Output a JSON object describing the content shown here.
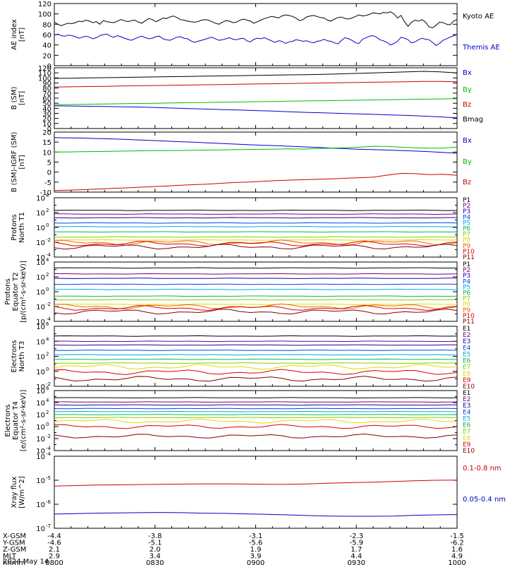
{
  "chart_data": [
    {
      "type": "line",
      "ylabel": "AE index\n[nT]",
      "ylim": [
        0,
        120
      ],
      "yticks": [
        "0",
        "20",
        "40",
        "60",
        "80",
        "100",
        "120"
      ],
      "series": [
        {
          "name": "Kyoto AE",
          "color": "#000000",
          "values": [
            84,
            80,
            77,
            80,
            82,
            81,
            83,
            86,
            85,
            88,
            86,
            83,
            85,
            80,
            87,
            85,
            84,
            83,
            86,
            89,
            87,
            85,
            87,
            88,
            84,
            82,
            87,
            91,
            89,
            85,
            88,
            92,
            91,
            94,
            96,
            93,
            89,
            88,
            86,
            85,
            84,
            85,
            88,
            89,
            88,
            85,
            82,
            80,
            84,
            87,
            86,
            83,
            84,
            88,
            90,
            88,
            86,
            82,
            85,
            88,
            91,
            93,
            95,
            94,
            92,
            96,
            98,
            97,
            95,
            92,
            87,
            89,
            94,
            96,
            97,
            95,
            93,
            92,
            88,
            86,
            90,
            93,
            94,
            91,
            90,
            92,
            95,
            98,
            96,
            97,
            99,
            102,
            101,
            100,
            103,
            102,
            104,
            100,
            92,
            97,
            85,
            76,
            84,
            88,
            86,
            89,
            84,
            75,
            73,
            78,
            84,
            83,
            80,
            79,
            86,
            89
          ]
        },
        {
          "name": "Themis AE",
          "color": "#0000cc",
          "values": [
            59,
            61,
            58,
            57,
            59,
            58,
            56,
            53,
            55,
            57,
            55,
            52,
            54,
            58,
            60,
            61,
            57,
            55,
            58,
            56,
            53,
            51,
            49,
            52,
            55,
            57,
            54,
            52,
            53,
            56,
            57,
            52,
            50,
            49,
            52,
            55,
            56,
            53,
            52,
            48,
            45,
            47,
            49,
            51,
            53,
            55,
            52,
            49,
            50,
            52,
            54,
            51,
            50,
            52,
            53,
            48,
            46,
            51,
            53,
            52,
            54,
            51,
            48,
            45,
            48,
            47,
            43,
            46,
            47,
            50,
            49,
            47,
            48,
            46,
            44,
            47,
            48,
            51,
            48,
            47,
            44,
            42,
            49,
            54,
            52,
            49,
            44,
            43,
            51,
            54,
            57,
            58,
            55,
            50,
            48,
            45,
            40,
            43,
            47,
            55,
            53,
            50,
            44,
            46,
            50,
            53,
            51,
            50,
            45,
            39,
            43,
            49,
            52,
            55,
            58,
            60
          ]
        }
      ]
    },
    {
      "type": "line",
      "ylabel": "B (SM)\n[nT]",
      "ylim": [
        0,
        120
      ],
      "yticks": [
        "0",
        "10",
        "20",
        "30",
        "40",
        "50",
        "60",
        "70",
        "80",
        "90",
        "100",
        "110",
        "120"
      ],
      "series": [
        {
          "name": "Bx",
          "color": "#0000cc",
          "values": [
            45,
            44.5,
            44,
            43.5,
            43,
            42.5,
            41.5,
            40.5,
            39.5,
            38.5,
            37.5,
            36.5,
            35.5,
            34.5,
            33,
            32,
            31,
            30,
            29,
            28,
            27,
            26,
            24.5,
            23,
            21
          ]
        },
        {
          "name": "By",
          "color": "#00bb00",
          "values": [
            47,
            47.5,
            48,
            48.5,
            49,
            49.5,
            50,
            50.5,
            51,
            51.5,
            52,
            52.5,
            53,
            53.5,
            54,
            54.5,
            55,
            55.5,
            56,
            56.5,
            57,
            57.5,
            58,
            58.5,
            59
          ]
        },
        {
          "name": "Bz",
          "color": "#cc0000",
          "values": [
            82,
            82.5,
            83,
            83.5,
            84,
            84.5,
            85,
            85.5,
            86,
            86.5,
            87,
            87.5,
            88,
            88.5,
            89,
            89.5,
            90,
            90.5,
            91,
            91.5,
            92,
            92.5,
            93,
            93,
            92.5
          ]
        },
        {
          "name": "Bmag",
          "color": "#000000",
          "values": [
            99,
            99.5,
            100,
            100.5,
            101,
            101.5,
            102,
            102.5,
            103,
            103.5,
            104,
            104.5,
            105,
            105.5,
            106,
            106.5,
            107,
            108,
            109,
            110,
            111,
            112,
            113,
            112,
            110
          ]
        }
      ]
    },
    {
      "type": "line",
      "ylabel": "B (SM)-IGRF (SM)\n[nT]",
      "ylim": [
        -10,
        20
      ],
      "yticks": [
        "-10",
        "-5",
        "0",
        "5",
        "10",
        "15",
        "20"
      ],
      "series": [
        {
          "name": "Bx",
          "color": "#0000cc",
          "values": [
            17.2,
            17.1,
            17,
            16.8,
            16.6,
            16.4,
            16.1,
            15.8,
            15.5,
            15.2,
            15,
            14.6,
            14.3,
            14,
            13.7,
            13.4,
            13.2,
            12.9,
            12.6,
            12.3,
            12,
            11.7,
            11.4,
            11.2,
            11,
            10.8,
            10.5,
            10.2,
            9.8,
            9.4
          ]
        },
        {
          "name": "By",
          "color": "#00bb00",
          "values": [
            10,
            10.1,
            10.2,
            10.3,
            10.4,
            10.5,
            10.6,
            10.7,
            10.7,
            10.8,
            10.9,
            11,
            11.1,
            11.2,
            11.3,
            11.4,
            11.5,
            11.6,
            11.5,
            11.8,
            12,
            12.2,
            12.5,
            12.9,
            12.8,
            12.4,
            12.1,
            12,
            12,
            12.5
          ]
        },
        {
          "name": "Bz",
          "color": "#cc0000",
          "values": [
            -9.2,
            -9,
            -8.8,
            -8.5,
            -8.2,
            -7.9,
            -7.6,
            -7.3,
            -7,
            -6.6,
            -6.3,
            -6,
            -5.6,
            -5.2,
            -5,
            -4.6,
            -4.3,
            -4,
            -3.8,
            -3.6,
            -3.4,
            -3.1,
            -2.8,
            -2.5,
            -1.5,
            -0.6,
            -0.8,
            -1.3,
            -1.1,
            -1.6
          ]
        }
      ]
    },
    {
      "type": "line",
      "ylabel": "Protons\nNorth T1",
      "yscale": "log",
      "ylim": [
        0.0001,
        10000
      ],
      "ytick_exponents": [
        "-4",
        "-2",
        "0",
        "2",
        "4"
      ],
      "series": [
        {
          "name": "P1",
          "color": "#000000",
          "level": 2.3
        },
        {
          "name": "P2",
          "color": "#770077",
          "level": 1.8
        },
        {
          "name": "P3",
          "color": "#220099",
          "level": 1.3
        },
        {
          "name": "P4",
          "color": "#0044ee",
          "level": 0.6
        },
        {
          "name": "P5",
          "color": "#00aadd",
          "level": 0.1
        },
        {
          "name": "P6",
          "color": "#00bb55",
          "level": -0.6
        },
        {
          "name": "P7",
          "color": "#88cc00",
          "level": -1.3
        },
        {
          "name": "P8",
          "color": "#dddd00",
          "level": -1.7
        },
        {
          "name": "P9",
          "color": "#ee6600",
          "level": -2.05
        },
        {
          "name": "P10",
          "color": "#dd0000",
          "level": -2.2
        },
        {
          "name": "P11",
          "color": "#880000",
          "level": -2.6
        }
      ]
    },
    {
      "type": "line",
      "ylabel": "Protons\nEquator T2\n[p/(cm²-s-sr-keV)]",
      "yscale": "log",
      "ylim": [
        0.0001,
        10000
      ],
      "ytick_exponents": [
        "-4",
        "-2",
        "0",
        "2",
        "4"
      ],
      "series": [
        {
          "name": "P1",
          "color": "#000000",
          "level": 3.2
        },
        {
          "name": "P2",
          "color": "#770077",
          "level": 2.4
        },
        {
          "name": "P3",
          "color": "#220099",
          "level": 1.8
        },
        {
          "name": "P4",
          "color": "#0044ee",
          "level": 1.0
        },
        {
          "name": "P5",
          "color": "#00aadd",
          "level": 0.3
        },
        {
          "name": "P6",
          "color": "#00bb55",
          "level": -0.6
        },
        {
          "name": "P7",
          "color": "#88cc00",
          "level": -1.1
        },
        {
          "name": "P8",
          "color": "#dddd00",
          "level": -1.7
        },
        {
          "name": "P9",
          "color": "#ee6600",
          "level": -2.0
        },
        {
          "name": "P10",
          "color": "#dd0000",
          "level": -2.2
        },
        {
          "name": "P11",
          "color": "#880000",
          "level": -2.7
        }
      ]
    },
    {
      "type": "line",
      "ylabel": "Electrons\nNorth T3",
      "yscale": "log",
      "ylim": [
        0.01,
        1000000
      ],
      "ytick_exponents": [
        "-2",
        "0",
        "2",
        "4",
        "6"
      ],
      "series": [
        {
          "name": "E1",
          "color": "#000000",
          "level": 4.7
        },
        {
          "name": "E2",
          "color": "#770077",
          "level": 4.0
        },
        {
          "name": "E3",
          "color": "#220099",
          "level": 3.5
        },
        {
          "name": "E4",
          "color": "#0044ee",
          "level": 2.8
        },
        {
          "name": "E5",
          "color": "#00aadd",
          "level": 2.2
        },
        {
          "name": "E6",
          "color": "#00bb55",
          "level": 1.6
        },
        {
          "name": "E7",
          "color": "#88cc00",
          "level": 1.1
        },
        {
          "name": "E8",
          "color": "#dddd00",
          "level": 0.6
        },
        {
          "name": "E9",
          "color": "#dd0000",
          "level": -0.1
        },
        {
          "name": "E10",
          "color": "#880000",
          "level": -1.0
        }
      ]
    },
    {
      "type": "line",
      "ylabel": "Electrons\nEquator T4\n[e/(cm²-s-sr-keV)]",
      "yscale": "log",
      "ylim": [
        0.0001,
        1000000
      ],
      "ytick_exponents": [
        "-4",
        "-2",
        "0",
        "2",
        "4",
        "6"
      ],
      "series": [
        {
          "name": "E1",
          "color": "#000000",
          "level": 4.8
        },
        {
          "name": "E2",
          "color": "#770077",
          "level": 4.1
        },
        {
          "name": "E3",
          "color": "#220099",
          "level": 3.6
        },
        {
          "name": "E4",
          "color": "#0044ee",
          "level": 3.0
        },
        {
          "name": "E5",
          "color": "#00aadd",
          "level": 2.5
        },
        {
          "name": "E6",
          "color": "#00bb55",
          "level": 2.0
        },
        {
          "name": "E7",
          "color": "#88cc00",
          "level": 1.5
        },
        {
          "name": "E8",
          "color": "#dddd00",
          "level": 0.9
        },
        {
          "name": "E9",
          "color": "#dd0000",
          "level": 0.0
        },
        {
          "name": "E10",
          "color": "#880000",
          "level": -1.6
        }
      ]
    },
    {
      "type": "line",
      "ylabel": "Xray flux\n[W/m^2]",
      "yscale": "log",
      "ylim": [
        1e-07,
        0.0001
      ],
      "ytick_exponents": [
        "-7",
        "-6",
        "-5",
        "-4"
      ],
      "series": [
        {
          "name": "0.1-0.8 nm",
          "color": "#cc0000",
          "values": [
            -5.24,
            -5.22,
            -5.2,
            -5.19,
            -5.18,
            -5.17,
            -5.16,
            -5.15,
            -5.15,
            -5.16,
            -5.17,
            -5.17,
            -5.15,
            -5.12,
            -5.1,
            -5.08,
            -5.05,
            -5.02,
            -5.0,
            -4.99
          ]
        },
        {
          "name": "0.05-0.4 nm",
          "color": "#0000cc",
          "values": [
            -6.41,
            -6.39,
            -6.37,
            -6.36,
            -6.35,
            -6.34,
            -6.35,
            -6.37,
            -6.38,
            -6.4,
            -6.42,
            -6.44,
            -6.47,
            -6.49,
            -6.5,
            -6.5,
            -6.49,
            -6.46,
            -6.44,
            -6.43
          ]
        }
      ]
    }
  ],
  "ephemeris": {
    "row_labels": [
      "X-GSM",
      "Y-GSM",
      "Z-GSM",
      "MLT",
      "hhmm"
    ],
    "columns": [
      {
        "x": -4.4,
        "values": [
          "-4.4",
          "-4.6",
          "2.1",
          "2.9",
          "0800"
        ]
      },
      {
        "x": -3.8,
        "values": [
          "-3.8",
          "-5.1",
          "2.0",
          "3.4",
          "0830"
        ]
      },
      {
        "x": -3.1,
        "values": [
          "-3.1",
          "-5.6",
          "1.9",
          "3.9",
          "0900"
        ]
      },
      {
        "x": -2.3,
        "values": [
          "-2.3",
          "-5.9",
          "1.7",
          "4.4",
          "0930"
        ]
      },
      {
        "x": -1.5,
        "values": [
          "-1.5",
          "-6.2",
          "1.6",
          "4.9",
          "1000"
        ]
      }
    ],
    "date": "2024 May 14"
  }
}
